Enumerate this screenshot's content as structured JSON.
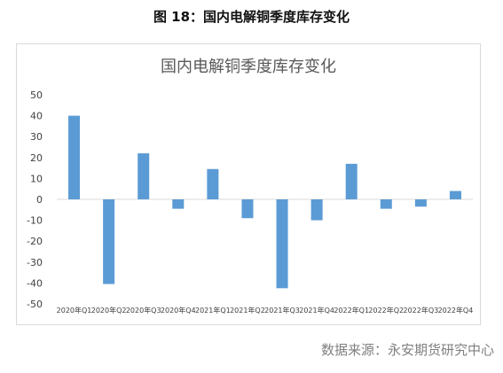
{
  "figure": {
    "caption": "图 18：国内电解铜季度库存变化",
    "source": "数据来源：永安期货研究中心"
  },
  "chart_data": {
    "type": "bar",
    "title": "国内电解铜季度库存变化",
    "categories": [
      "2020年Q1",
      "2020年Q2",
      "2020年Q3",
      "2020年Q4",
      "2021年Q1",
      "2021年Q2",
      "2021年Q3",
      "2021年Q4",
      "2022年Q1",
      "2022年Q2",
      "2022年Q3",
      "2022年Q4"
    ],
    "values": [
      40,
      -40.5,
      22,
      -4.5,
      14.5,
      -9,
      -42.5,
      -10,
      17,
      -4.5,
      -3.5,
      4
    ],
    "ylim": [
      -50,
      50
    ],
    "yticks": [
      50,
      40,
      30,
      20,
      10,
      0,
      -10,
      -20,
      -30,
      -40,
      -50
    ],
    "grid": false,
    "bar_color": "#5b9bd5",
    "axis_color": "#d9d9d9",
    "label_color": "#404040"
  }
}
